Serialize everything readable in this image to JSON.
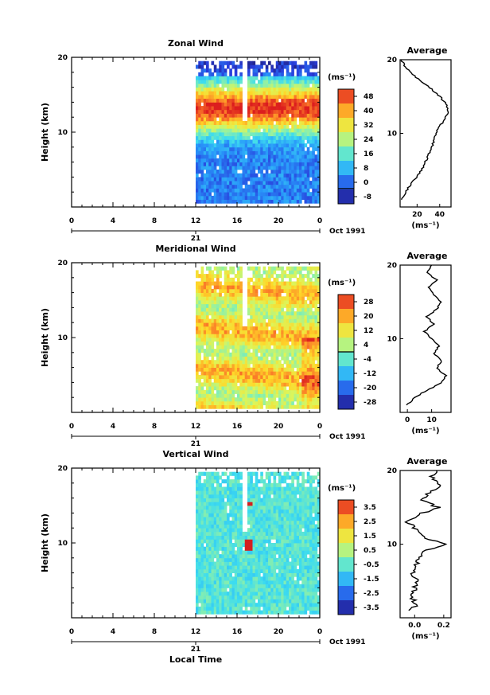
{
  "chart_data": [
    {
      "type": "heatmap",
      "title": "Zonal Wind",
      "ylabel": "Height (km)",
      "ylim": [
        0,
        20
      ],
      "y_ticks": [
        "20",
        "10"
      ],
      "x_ticks": [
        "0",
        "4",
        "8",
        "12",
        "16",
        "20",
        "0"
      ],
      "xlim": [
        0,
        24
      ],
      "data_start_hour": 12,
      "day_label": "21",
      "date_label": "Oct 1991",
      "colorbar": {
        "unit": "(ms⁻¹)",
        "ticks": [
          "48",
          "40",
          "32",
          "24",
          "16",
          "8",
          "0",
          "-8"
        ],
        "range": [
          -8,
          52
        ],
        "contour_level": 0
      },
      "average": {
        "title": "Average",
        "unit_label": "(ms⁻¹)",
        "x_ticks": [
          "20",
          "40"
        ],
        "xlim": [
          5,
          50
        ],
        "y_ticks": [
          "20",
          "10"
        ],
        "profile": [
          {
            "h": 1,
            "v": 7
          },
          {
            "h": 2,
            "v": 10
          },
          {
            "h": 3,
            "v": 14
          },
          {
            "h": 4,
            "v": 19
          },
          {
            "h": 5,
            "v": 24
          },
          {
            "h": 6,
            "v": 27
          },
          {
            "h": 7,
            "v": 30
          },
          {
            "h": 8,
            "v": 33
          },
          {
            "h": 9,
            "v": 35
          },
          {
            "h": 10,
            "v": 37
          },
          {
            "h": 11,
            "v": 40
          },
          {
            "h": 12,
            "v": 45
          },
          {
            "h": 13,
            "v": 48
          },
          {
            "h": 14,
            "v": 46
          },
          {
            "h": 15,
            "v": 40
          },
          {
            "h": 16,
            "v": 33
          },
          {
            "h": 17,
            "v": 24
          },
          {
            "h": 18,
            "v": 16
          },
          {
            "h": 19,
            "v": 10
          },
          {
            "h": 20,
            "v": 6
          }
        ]
      }
    },
    {
      "type": "heatmap",
      "title": "Meridional Wind",
      "ylabel": "Height (km)",
      "ylim": [
        0,
        20
      ],
      "y_ticks": [
        "20",
        "10"
      ],
      "x_ticks": [
        "0",
        "4",
        "8",
        "12",
        "16",
        "20",
        "0"
      ],
      "xlim": [
        0,
        24
      ],
      "data_start_hour": 12,
      "day_label": "21",
      "date_label": "Oct 1991",
      "colorbar": {
        "unit": "(ms⁻¹)",
        "ticks": [
          "28",
          "20",
          "12",
          "4",
          "-4",
          "-12",
          "-20",
          "-28"
        ],
        "range": [
          -32,
          32
        ],
        "contour_level": 0
      },
      "average": {
        "title": "Average",
        "unit_label": "(ms⁻¹)",
        "x_ticks": [
          "0",
          "10"
        ],
        "xlim": [
          -3,
          18
        ],
        "y_ticks": [
          "20",
          "10"
        ],
        "profile": [
          {
            "h": 1,
            "v": 0
          },
          {
            "h": 2,
            "v": 3
          },
          {
            "h": 3,
            "v": 8
          },
          {
            "h": 4,
            "v": 14
          },
          {
            "h": 5,
            "v": 16
          },
          {
            "h": 6,
            "v": 12
          },
          {
            "h": 7,
            "v": 14
          },
          {
            "h": 8,
            "v": 11
          },
          {
            "h": 9,
            "v": 13
          },
          {
            "h": 10,
            "v": 10
          },
          {
            "h": 11,
            "v": 7
          },
          {
            "h": 12,
            "v": 11
          },
          {
            "h": 13,
            "v": 8
          },
          {
            "h": 14,
            "v": 12
          },
          {
            "h": 15,
            "v": 14
          },
          {
            "h": 16,
            "v": 11
          },
          {
            "h": 17,
            "v": 9
          },
          {
            "h": 18,
            "v": 12
          },
          {
            "h": 19,
            "v": 8
          },
          {
            "h": 20,
            "v": 10
          }
        ]
      }
    },
    {
      "type": "heatmap",
      "title": "Vertical Wind",
      "ylabel": "Height (km)",
      "xlabel": "Local Time",
      "ylim": [
        0,
        20
      ],
      "y_ticks": [
        "20",
        "10"
      ],
      "x_ticks": [
        "0",
        "4",
        "8",
        "12",
        "16",
        "20",
        "0"
      ],
      "xlim": [
        0,
        24
      ],
      "data_start_hour": 12,
      "day_label": "21",
      "date_label": "Oct 1991",
      "colorbar": {
        "unit": "(ms⁻¹)",
        "ticks": [
          "3.5",
          "2.5",
          "1.5",
          "0.5",
          "-0.5",
          "-1.5",
          "-2.5",
          "-3.5"
        ],
        "range": [
          -4,
          4
        ]
      },
      "average": {
        "title": "Average",
        "unit_label": "(ms⁻¹)",
        "x_ticks": [
          "0.0",
          "0.2"
        ],
        "xlim": [
          -0.1,
          0.25
        ],
        "y_ticks": [
          "20",
          "10"
        ],
        "profile": [
          {
            "h": 1,
            "v": -0.02
          },
          {
            "h": 2,
            "v": 0.01
          },
          {
            "h": 3,
            "v": -0.03
          },
          {
            "h": 4,
            "v": 0.0
          },
          {
            "h": 5,
            "v": 0.02
          },
          {
            "h": 6,
            "v": -0.01
          },
          {
            "h": 7,
            "v": 0.0
          },
          {
            "h": 8,
            "v": 0.03
          },
          {
            "h": 9,
            "v": 0.06
          },
          {
            "h": 10,
            "v": 0.2
          },
          {
            "h": 11,
            "v": 0.05
          },
          {
            "h": 12,
            "v": 0.01
          },
          {
            "h": 13,
            "v": -0.05
          },
          {
            "h": 14,
            "v": 0.02
          },
          {
            "h": 15,
            "v": 0.16
          },
          {
            "h": 16,
            "v": 0.04
          },
          {
            "h": 17,
            "v": 0.1
          },
          {
            "h": 18,
            "v": 0.18
          },
          {
            "h": 19,
            "v": 0.12
          },
          {
            "h": 20,
            "v": 0.15
          }
        ]
      }
    }
  ]
}
